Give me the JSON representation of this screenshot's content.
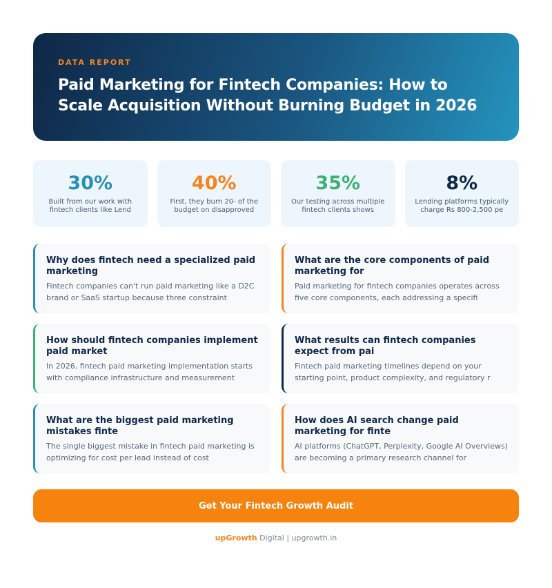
{
  "header": {
    "kicker": "DATA REPORT",
    "title": "Paid Marketing for Fintech Companies: How to Scale Acquisition Without Burning Budget in 2026"
  },
  "stats": [
    {
      "value": "30%",
      "label": "Built from our work with fintech clients like Lend"
    },
    {
      "value": "40%",
      "label": "First, they burn 20- of the budget on disapproved"
    },
    {
      "value": "35%",
      "label": "Our testing across multiple fintech clients shows"
    },
    {
      "value": "8%",
      "label": "Lending platforms typically charge Rs 800-2,500 pe"
    }
  ],
  "cards": [
    {
      "title": "Why does fintech need a specialized paid marketing",
      "text": "Fintech companies can't run paid marketing like a D2C brand or SaaS startup because three constraint"
    },
    {
      "title": "What are the core components of paid marketing for",
      "text": "Paid marketing for fintech companies operates across five core components, each addressing a specifi"
    },
    {
      "title": "How should fintech companies implement paid market",
      "text": "In 2026, fintech paid marketing implementation starts with compliance infrastructure and measurement"
    },
    {
      "title": "What results can fintech companies expect from pai",
      "text": "Fintech paid marketing timelines depend on your starting point, product complexity, and regulatory r"
    },
    {
      "title": "What are the biggest paid marketing mistakes finte",
      "text": "The single biggest mistake in fintech paid marketing is optimizing for cost per lead instead of cost"
    },
    {
      "title": "How does AI search change paid marketing for finte",
      "text": "AI platforms (ChatGPT, Perplexity, Google AI Overviews) are becoming a primary research channel for"
    }
  ],
  "cta": "Get Your Fintech Growth Audit",
  "footer": {
    "brand": "upGrowth",
    "suffix": "Digital | upgrowth.in"
  }
}
